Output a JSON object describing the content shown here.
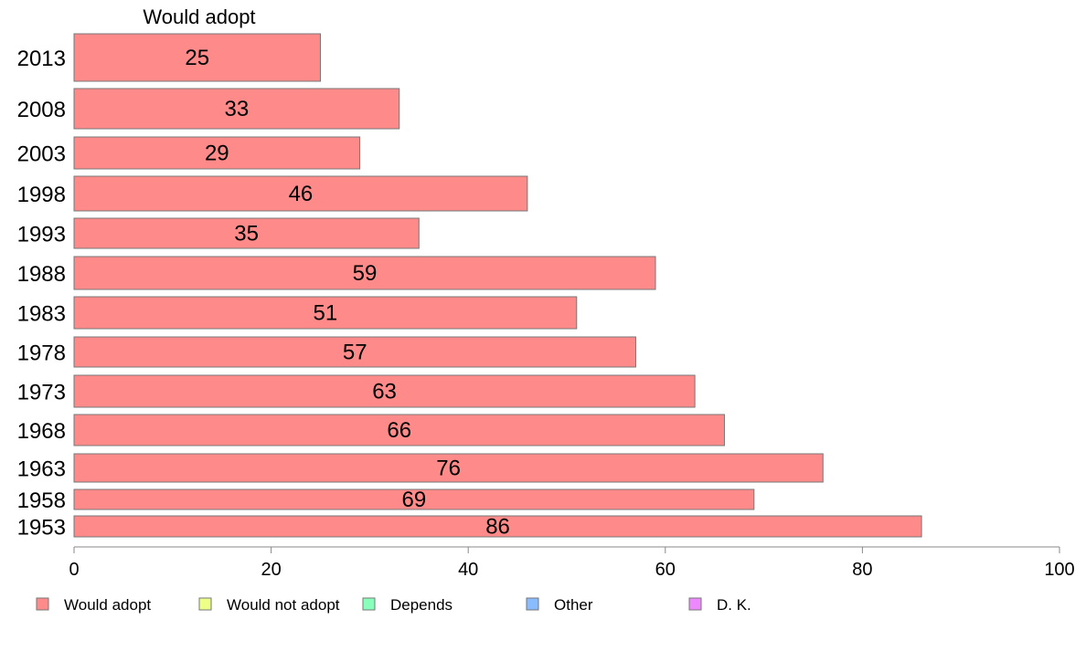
{
  "chart_data": {
    "type": "bar",
    "orientation": "horizontal",
    "title": "Would adopt",
    "xlabel": "",
    "ylabel": "",
    "xlim": [
      0,
      100
    ],
    "x_ticks": [
      "0",
      "20",
      "40",
      "60",
      "80",
      "100"
    ],
    "grid": false,
    "categories": [
      "2013",
      "2008",
      "2003",
      "1998",
      "1993",
      "1988",
      "1983",
      "1978",
      "1973",
      "1968",
      "1963",
      "1958",
      "1953"
    ],
    "series": [
      {
        "name": "Would adopt",
        "color": "#ff8a8a",
        "values": [
          25,
          33,
          29,
          46,
          35,
          59,
          51,
          57,
          63,
          66,
          76,
          69,
          86
        ]
      }
    ],
    "legend_position": "bottom",
    "legend": [
      {
        "label": "Would adopt",
        "color": "#ff8a8a"
      },
      {
        "label": "Would not adopt",
        "color": "#eeff88"
      },
      {
        "label": "Depends",
        "color": "#88ffbb"
      },
      {
        "label": "Other",
        "color": "#88bbff"
      },
      {
        "label": "D. K.",
        "color": "#ee88ff"
      }
    ]
  }
}
